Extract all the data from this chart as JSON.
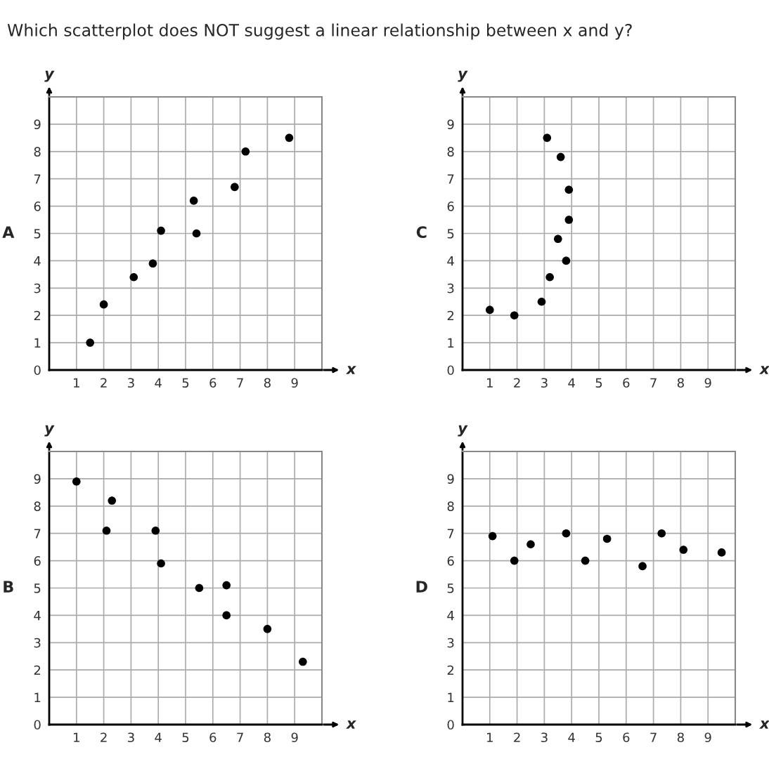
{
  "chart_data": [
    {
      "type": "scatter",
      "title": "A",
      "annotations": [
        "Which scatterplot does NOT suggest a linear relationship between x and y?"
      ],
      "xlabel": "x",
      "ylabel": "y",
      "xlim": [
        0,
        10
      ],
      "ylim": [
        0,
        10
      ],
      "xticks": [
        1,
        2,
        3,
        4,
        5,
        6,
        7,
        8,
        9
      ],
      "yticks": [
        0,
        1,
        2,
        3,
        4,
        5,
        6,
        7,
        8,
        9
      ],
      "grid": true,
      "marker": "circle",
      "series": [
        {
          "color": "#000000",
          "x": [
            1.5,
            2.0,
            3.1,
            3.8,
            4.1,
            5.3,
            5.4,
            6.8,
            7.2,
            8.8
          ],
          "values": [
            1.0,
            2.4,
            3.4,
            3.9,
            5.1,
            6.2,
            5.0,
            6.7,
            8.0,
            8.5
          ]
        }
      ]
    },
    {
      "type": "scatter",
      "title": "C",
      "xlabel": "x",
      "ylabel": "y",
      "xlim": [
        0,
        10
      ],
      "ylim": [
        0,
        10
      ],
      "xticks": [
        1,
        2,
        3,
        4,
        5,
        6,
        7,
        8,
        9
      ],
      "yticks": [
        0,
        1,
        2,
        3,
        4,
        5,
        6,
        7,
        8,
        9
      ],
      "grid": true,
      "marker": "circle",
      "series": [
        {
          "color": "#000000",
          "x": [
            1.0,
            1.9,
            2.9,
            3.1,
            3.2,
            3.5,
            3.6,
            3.8,
            3.9,
            3.9
          ],
          "values": [
            2.2,
            2.0,
            2.5,
            8.5,
            3.4,
            4.8,
            7.8,
            4.0,
            6.6,
            5.5
          ]
        }
      ]
    },
    {
      "type": "scatter",
      "title": "B",
      "xlabel": "x",
      "ylabel": "y",
      "xlim": [
        0,
        10
      ],
      "ylim": [
        0,
        10
      ],
      "xticks": [
        1,
        2,
        3,
        4,
        5,
        6,
        7,
        8,
        9
      ],
      "yticks": [
        0,
        1,
        2,
        3,
        4,
        5,
        6,
        7,
        8,
        9
      ],
      "grid": true,
      "marker": "circle",
      "series": [
        {
          "color": "#000000",
          "x": [
            1.0,
            2.3,
            2.1,
            3.9,
            4.1,
            5.5,
            6.5,
            6.5,
            8.0,
            9.3
          ],
          "values": [
            8.9,
            8.2,
            7.1,
            7.1,
            5.9,
            5.0,
            5.1,
            4.0,
            3.5,
            2.3
          ]
        }
      ]
    },
    {
      "type": "scatter",
      "title": "D",
      "xlabel": "x",
      "ylabel": "y",
      "xlim": [
        0,
        10
      ],
      "ylim": [
        0,
        10
      ],
      "xticks": [
        1,
        2,
        3,
        4,
        5,
        6,
        7,
        8,
        9
      ],
      "yticks": [
        0,
        1,
        2,
        3,
        4,
        5,
        6,
        7,
        8,
        9
      ],
      "grid": true,
      "marker": "circle",
      "series": [
        {
          "color": "#000000",
          "x": [
            1.1,
            1.9,
            2.5,
            3.8,
            4.5,
            5.3,
            6.6,
            7.3,
            8.1,
            9.5
          ],
          "values": [
            6.9,
            6.0,
            6.6,
            7.0,
            6.0,
            6.8,
            5.8,
            7.0,
            6.4,
            6.3
          ]
        }
      ]
    }
  ]
}
